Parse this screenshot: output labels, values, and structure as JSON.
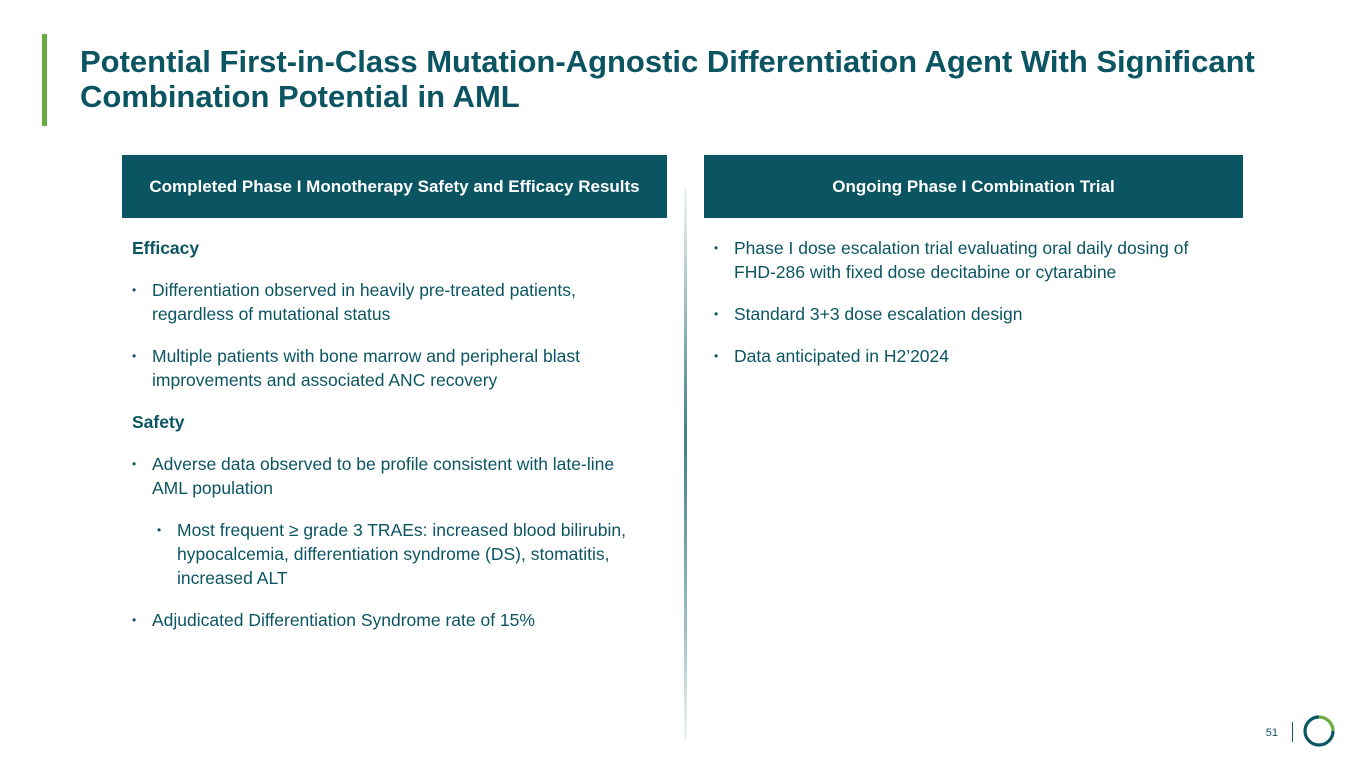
{
  "title": "Potential First-in-Class Mutation-Agnostic Differentiation Agent With Significant Combination Potential in AML",
  "left": {
    "header": "Completed Phase I Monotherapy Safety and Efficacy Results",
    "efficacy_heading": "Efficacy",
    "efficacy_bullets": [
      "Differentiation observed in heavily pre-treated patients, regardless of mutational status",
      "Multiple patients with bone marrow and peripheral blast improvements and associated ANC recovery"
    ],
    "safety_heading": "Safety",
    "safety_bullets": [
      "Adverse data observed to be profile consistent with late-line AML population"
    ],
    "safety_sub_bullets": [
      "Most frequent ≥ grade 3 TRAEs: increased blood bilirubin, hypocalcemia, differentiation syndrome (DS), stomatitis, increased ALT"
    ],
    "safety_final_bullet": "Adjudicated Differentiation Syndrome rate of 15%"
  },
  "right": {
    "header": "Ongoing Phase I Combination Trial",
    "bullets": [
      "Phase I dose escalation trial evaluating oral daily dosing of FHD-286 with fixed dose decitabine or cytarabine",
      "Standard 3+3 dose escalation design",
      "Data anticipated in H2’2024"
    ]
  },
  "footer": {
    "page_number": "51",
    "logo_icon": "circle-arc-logo-icon"
  },
  "colors": {
    "primary": "#0b5563",
    "accent": "#6aab43"
  }
}
